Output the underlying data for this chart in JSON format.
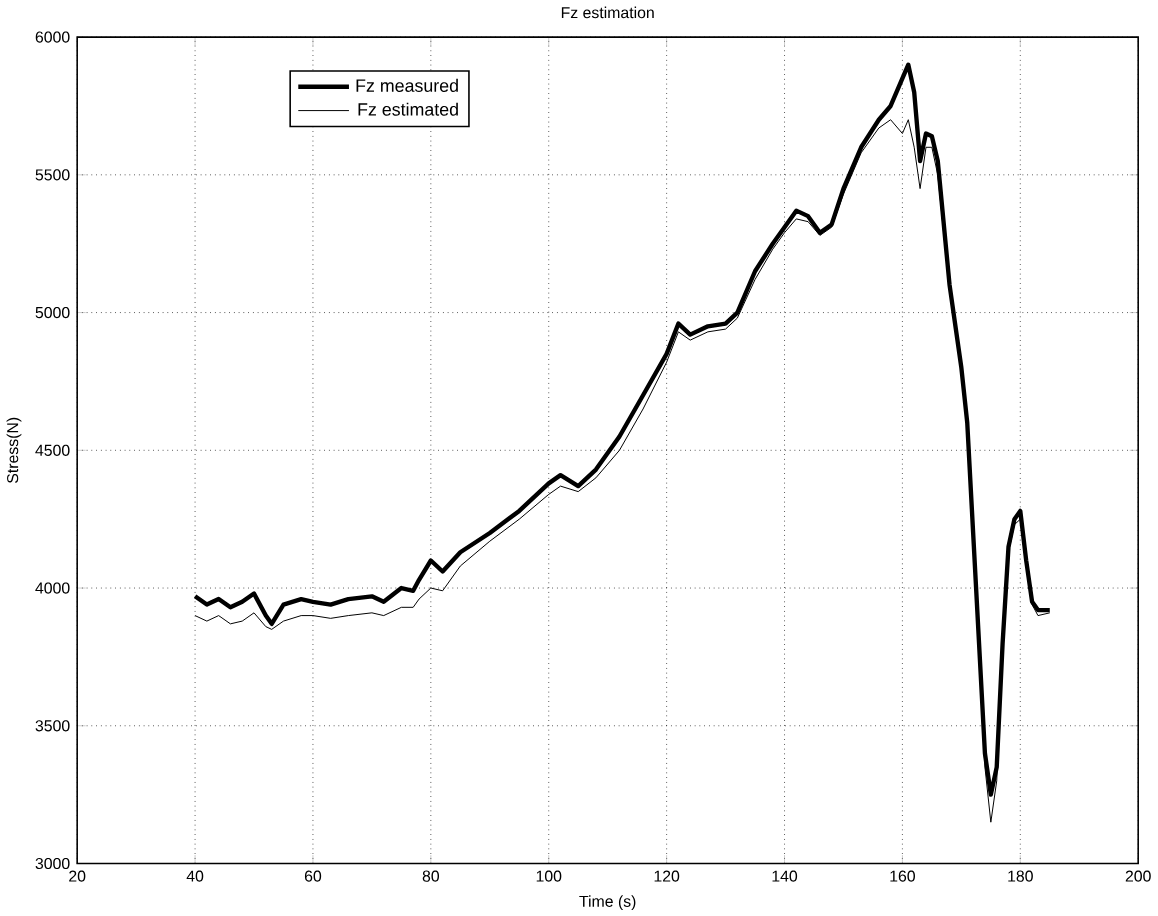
{
  "chart_data": {
    "type": "line",
    "title": "Fz estimation",
    "xlabel": "Time (s)",
    "ylabel": "Stress(N)",
    "xlim": [
      20,
      200
    ],
    "xticks": [
      20,
      40,
      60,
      80,
      100,
      120,
      140,
      160,
      180,
      200
    ],
    "ylim": [
      3000,
      6000
    ],
    "yticks": [
      3000,
      3500,
      4000,
      4500,
      5000,
      5500,
      6000
    ],
    "grid": true,
    "legend": "top left",
    "series": [
      {
        "name": "Fz measured",
        "color": "#000000",
        "x": [
          40,
          42,
          44,
          46,
          48,
          50,
          52,
          53,
          55,
          58,
          60,
          63,
          66,
          70,
          72,
          75,
          77,
          78,
          80,
          82,
          85,
          90,
          95,
          100,
          102,
          105,
          108,
          112,
          116,
          120,
          122,
          124,
          127,
          130,
          132,
          135,
          138,
          140,
          142,
          144,
          146,
          148,
          150,
          153,
          156,
          158,
          160,
          161,
          162,
          163,
          164,
          165,
          166,
          168,
          170,
          171,
          172,
          173,
          174,
          175,
          176,
          177,
          178,
          179,
          180,
          181,
          182,
          183,
          185
        ],
        "values": [
          3970,
          3940,
          3960,
          3930,
          3950,
          3980,
          3900,
          3870,
          3940,
          3960,
          3950,
          3940,
          3960,
          3970,
          3950,
          4000,
          3990,
          4030,
          4100,
          4060,
          4130,
          4200,
          4280,
          4380,
          4410,
          4370,
          4430,
          4550,
          4700,
          4850,
          4960,
          4920,
          4950,
          4960,
          5000,
          5150,
          5250,
          5310,
          5370,
          5350,
          5290,
          5320,
          5450,
          5600,
          5700,
          5750,
          5850,
          5900,
          5800,
          5550,
          5650,
          5640,
          5550,
          5100,
          4800,
          4600,
          4200,
          3800,
          3400,
          3250,
          3350,
          3800,
          4150,
          4250,
          4280,
          4100,
          3950,
          3920,
          3920
        ]
      },
      {
        "name": "Fz estimated",
        "color": "#000000",
        "x": [
          40,
          42,
          44,
          46,
          48,
          50,
          52,
          53,
          55,
          58,
          60,
          63,
          66,
          70,
          72,
          75,
          77,
          78,
          80,
          82,
          85,
          90,
          95,
          100,
          102,
          105,
          108,
          112,
          116,
          120,
          122,
          124,
          127,
          130,
          132,
          135,
          138,
          140,
          142,
          144,
          146,
          148,
          150,
          153,
          156,
          158,
          160,
          161,
          162,
          163,
          164,
          165,
          166,
          168,
          170,
          171,
          172,
          173,
          174,
          175,
          176,
          177,
          178,
          179,
          180,
          181,
          182,
          183,
          185
        ],
        "values": [
          3900,
          3880,
          3900,
          3870,
          3880,
          3910,
          3860,
          3850,
          3880,
          3900,
          3900,
          3890,
          3900,
          3910,
          3900,
          3930,
          3930,
          3960,
          4000,
          3990,
          4080,
          4170,
          4250,
          4340,
          4370,
          4350,
          4400,
          4500,
          4650,
          4820,
          4930,
          4900,
          4930,
          4940,
          4980,
          5120,
          5230,
          5290,
          5340,
          5330,
          5280,
          5310,
          5430,
          5580,
          5670,
          5700,
          5650,
          5700,
          5600,
          5450,
          5600,
          5600,
          5500,
          5080,
          4780,
          4580,
          4180,
          3780,
          3350,
          3150,
          3300,
          3780,
          4130,
          4230,
          4250,
          4080,
          3940,
          3900,
          3910
        ]
      }
    ]
  }
}
